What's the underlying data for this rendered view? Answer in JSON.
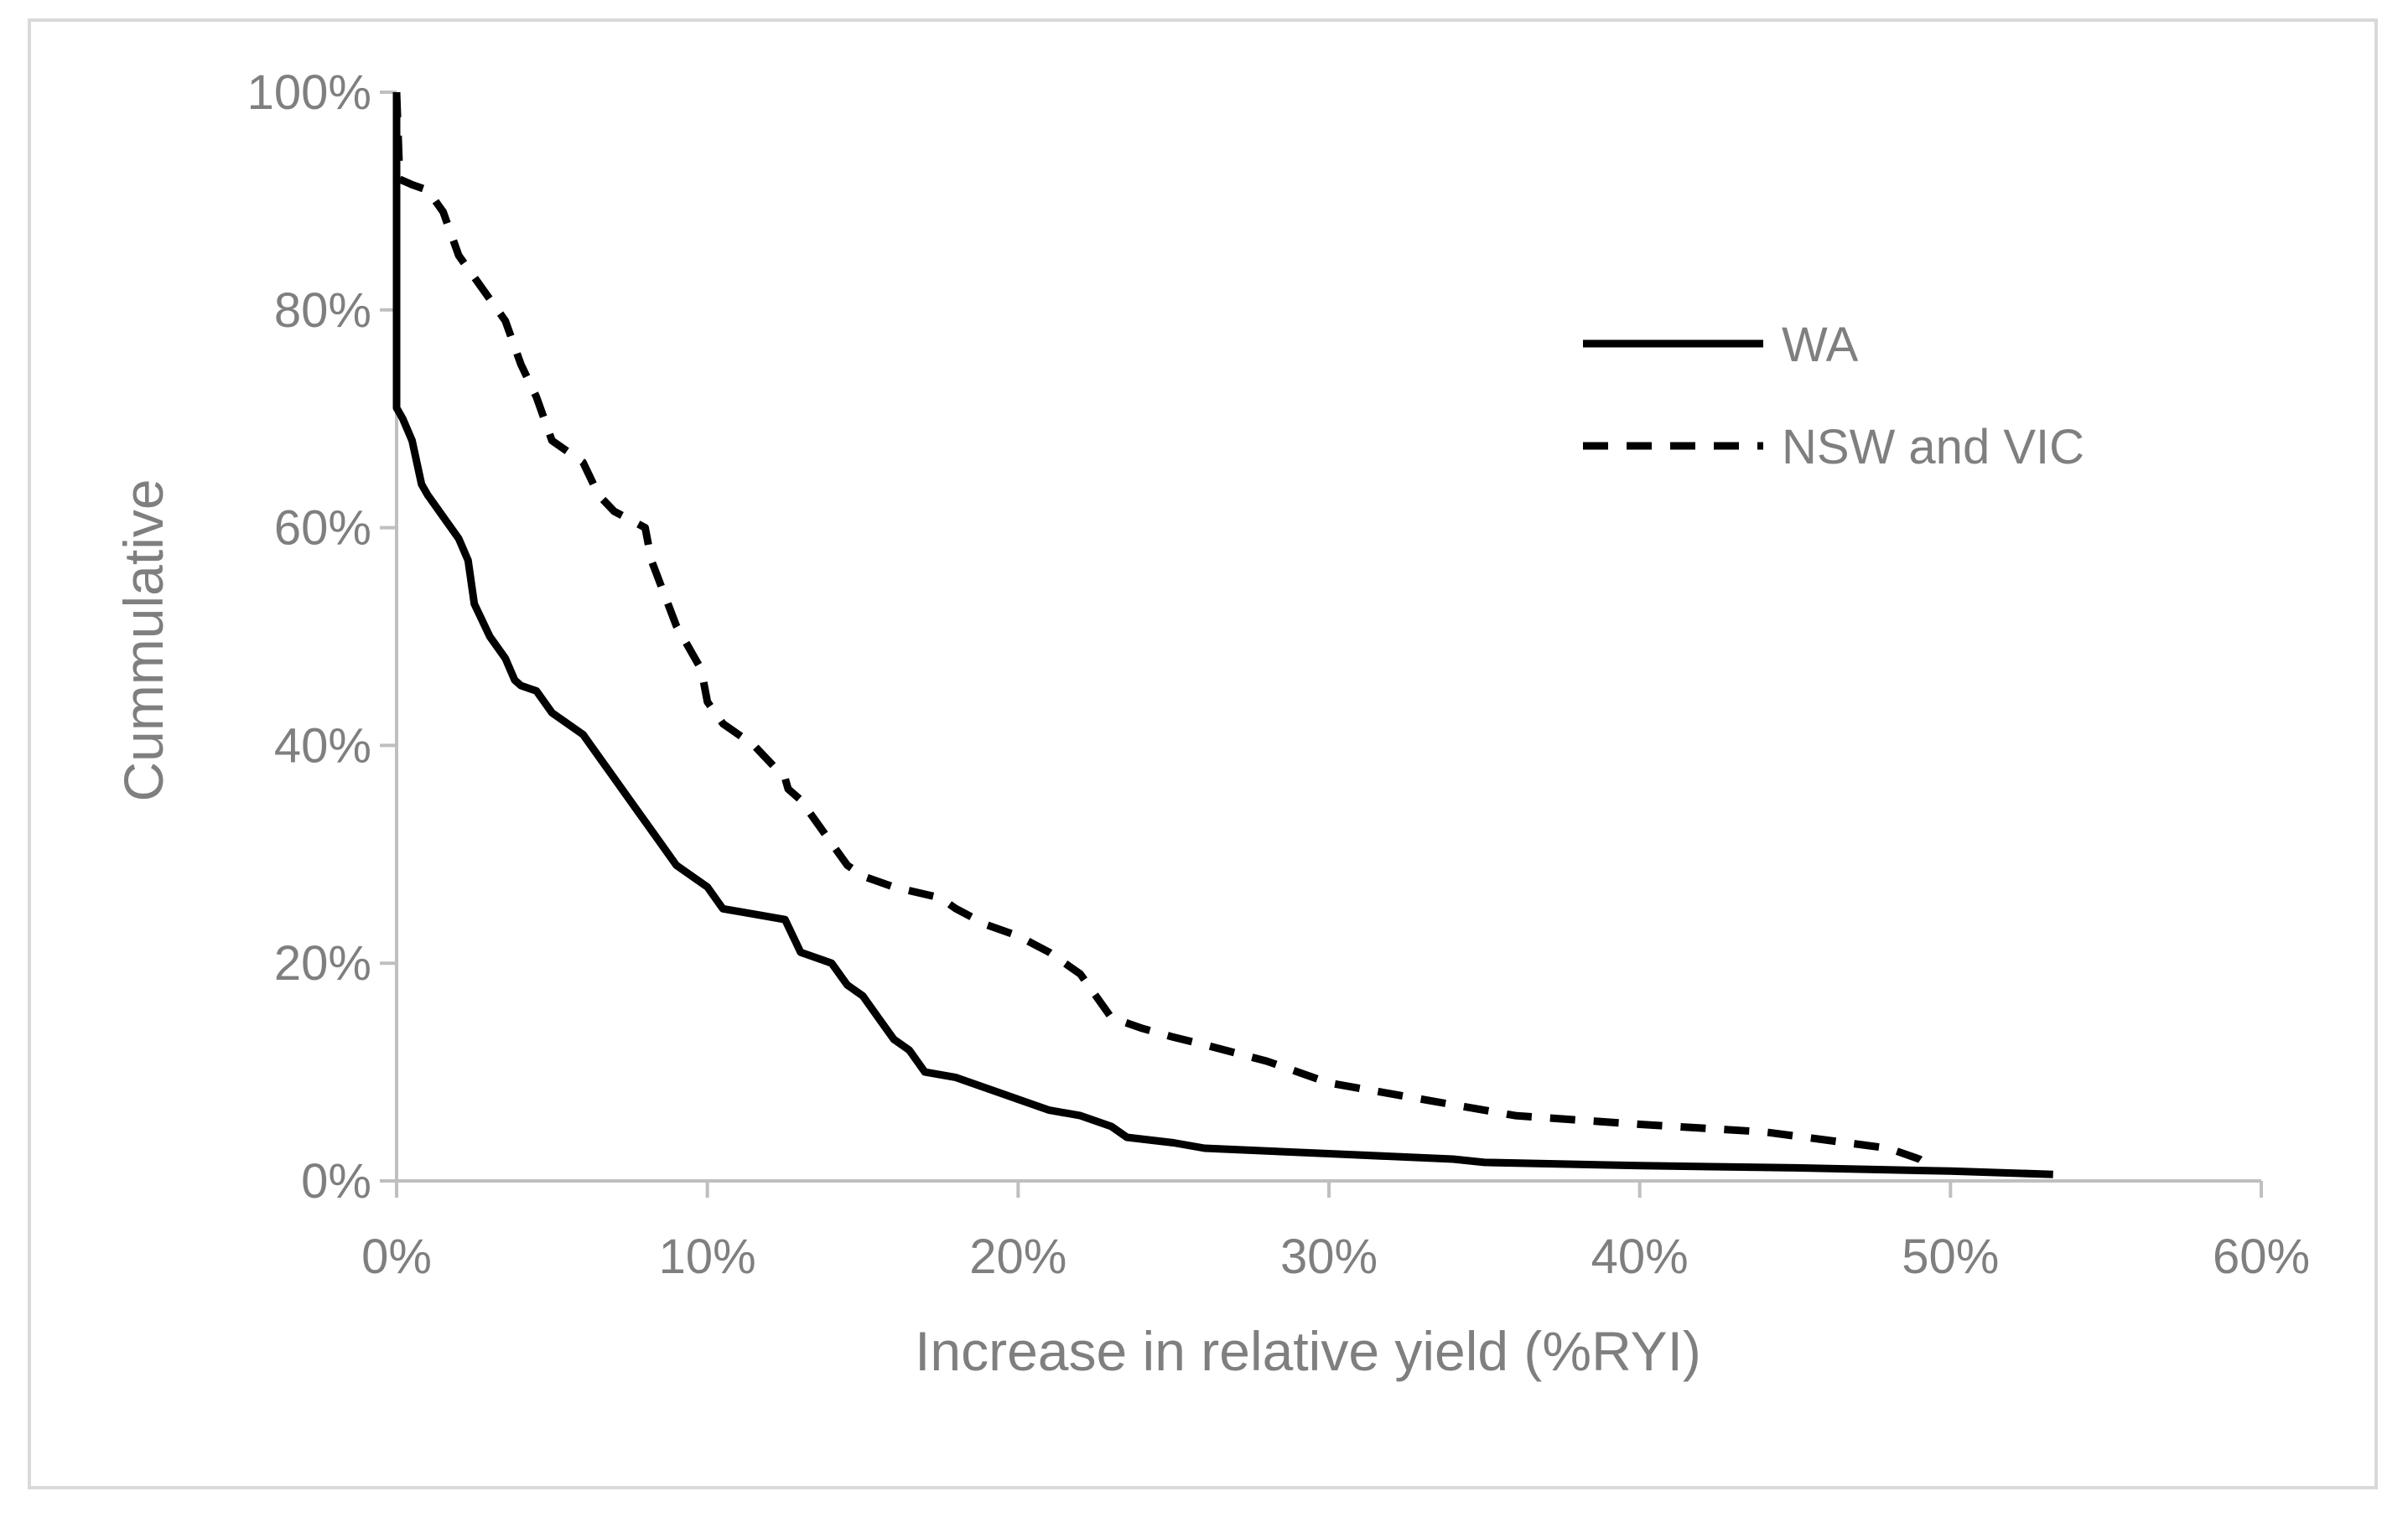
{
  "chart_data": {
    "type": "line",
    "title": "",
    "xlabel": "Increase in relative yield (%RYI)",
    "ylabel": "Cummulative",
    "xlim": [
      0,
      60
    ],
    "ylim": [
      0,
      100
    ],
    "x_ticks": [
      0,
      10,
      20,
      30,
      40,
      50,
      60
    ],
    "y_ticks": [
      0,
      20,
      40,
      60,
      80,
      100
    ],
    "x_tick_labels": [
      "0%",
      "10%",
      "20%",
      "30%",
      "40%",
      "50%",
      "60%"
    ],
    "y_tick_labels": [
      "0%",
      "20%",
      "40%",
      "60%",
      "80%",
      "100%"
    ],
    "grid": false,
    "legend_position": "top-right",
    "colors": {
      "line": "#000000",
      "axis": "#bfbfbf",
      "text": "#7f7f7f",
      "frame": "#d9d9d9"
    },
    "series": [
      {
        "name": "WA",
        "style": "solid",
        "x": [
          0,
          0,
          0.2,
          0.5,
          0.8,
          1.0,
          1.5,
          2.0,
          2.3,
          2.5,
          3.0,
          3.5,
          3.8,
          4.0,
          4.5,
          5.0,
          5.5,
          6.0,
          6.5,
          7.0,
          7.5,
          8.0,
          8.5,
          9.0,
          9.5,
          10.0,
          10.5,
          11.5,
          12.5,
          13.0,
          14.0,
          14.5,
          15.0,
          15.5,
          16.0,
          16.5,
          17.0,
          18.0,
          18.5,
          19.5,
          20.0,
          21.0,
          22.0,
          23.0,
          23.5,
          25.0,
          26.0,
          30.0,
          34.0,
          35.0,
          40.0,
          45.0,
          50.0,
          53.3
        ],
        "y": [
          100,
          71,
          70,
          68,
          64,
          63,
          61,
          59,
          57,
          53,
          50,
          48,
          46,
          45.5,
          45,
          43,
          42,
          41,
          39,
          37,
          35,
          33,
          31,
          29,
          28,
          27,
          25,
          24.5,
          24,
          21,
          20,
          18,
          17,
          15,
          13,
          12,
          10,
          9.5,
          9,
          8,
          7.5,
          6.5,
          6,
          5,
          4,
          3.5,
          3,
          2.5,
          2,
          1.7,
          1.4,
          1.2,
          0.9,
          0.6
        ]
      },
      {
        "name": "NSW and VIC",
        "style": "dashed",
        "x": [
          0,
          0.1,
          0.5,
          1.0,
          1.5,
          2.0,
          3.0,
          3.5,
          4.0,
          4.5,
          5.0,
          5.5,
          6.0,
          6.5,
          7.0,
          8.0,
          8.2,
          9.0,
          9.8,
          10.0,
          10.5,
          11.5,
          12.5,
          12.6,
          13.0,
          14.0,
          14.5,
          15.0,
          16.0,
          17.5,
          18.0,
          19.0,
          20.0,
          21.0,
          22.0,
          22.5,
          23.0,
          24.0,
          25.0,
          26.0,
          28.0,
          30.0,
          32.0,
          34.0,
          36.0,
          40.0,
          44.0,
          48.0,
          49.0,
          49.5
        ],
        "y": [
          100,
          92,
          91.5,
          91,
          89,
          85,
          81,
          79,
          75,
          72,
          68,
          67,
          66,
          63,
          61.5,
          60,
          57,
          51,
          47,
          44,
          42,
          40,
          37,
          36,
          35,
          31,
          29,
          28,
          27,
          26,
          25,
          23.5,
          22.5,
          21,
          19,
          17,
          15,
          14,
          13.2,
          12.5,
          11,
          9,
          8,
          7,
          6,
          5.2,
          4.5,
          3,
          2,
          1
        ]
      }
    ]
  }
}
